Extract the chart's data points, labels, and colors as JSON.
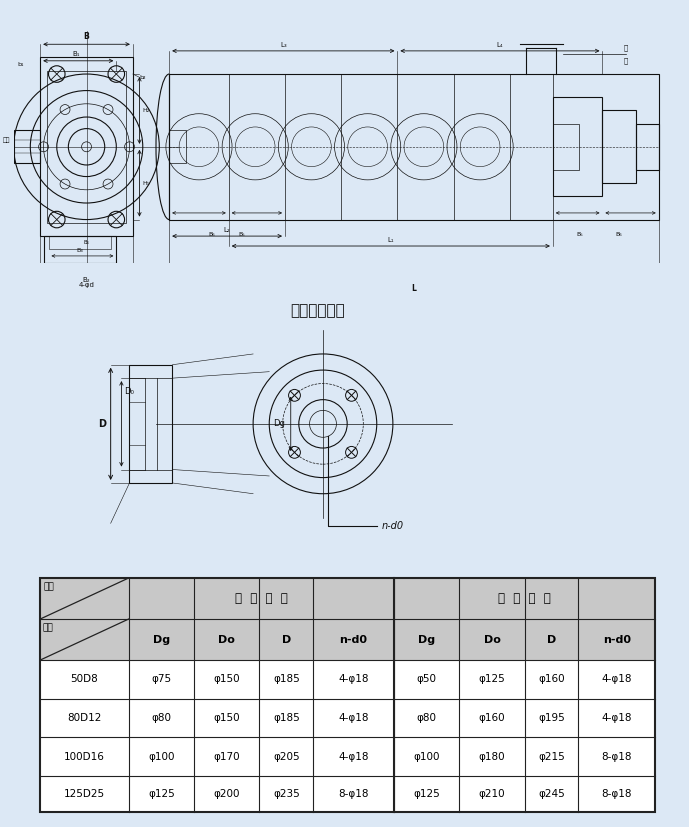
{
  "bg_color": "#dce8f5",
  "border_color": "#2060a0",
  "flange_title": "吸入吐出法兰",
  "table_data": [
    [
      "50D8",
      "φ75",
      "φ150",
      "φ185",
      "4-φ18",
      "φ50",
      "φ125",
      "φ160",
      "4-φ18"
    ],
    [
      "80D12",
      "φ80",
      "φ150",
      "φ185",
      "4-φ18",
      "φ80",
      "φ160",
      "φ195",
      "4-φ18"
    ],
    [
      "100D16",
      "φ100",
      "φ170",
      "φ205",
      "4-φ18",
      "φ100",
      "φ180",
      "φ215",
      "8-φ18"
    ],
    [
      "125D25",
      "φ125",
      "φ200",
      "φ235",
      "8-φ18",
      "φ125",
      "φ210",
      "φ245",
      "8-φ18"
    ]
  ],
  "line_color": "#111111",
  "table_bg": "#c8c8c8",
  "table_line_color": "#222222",
  "white": "#ffffff",
  "light_gray": "#e8e8e8"
}
